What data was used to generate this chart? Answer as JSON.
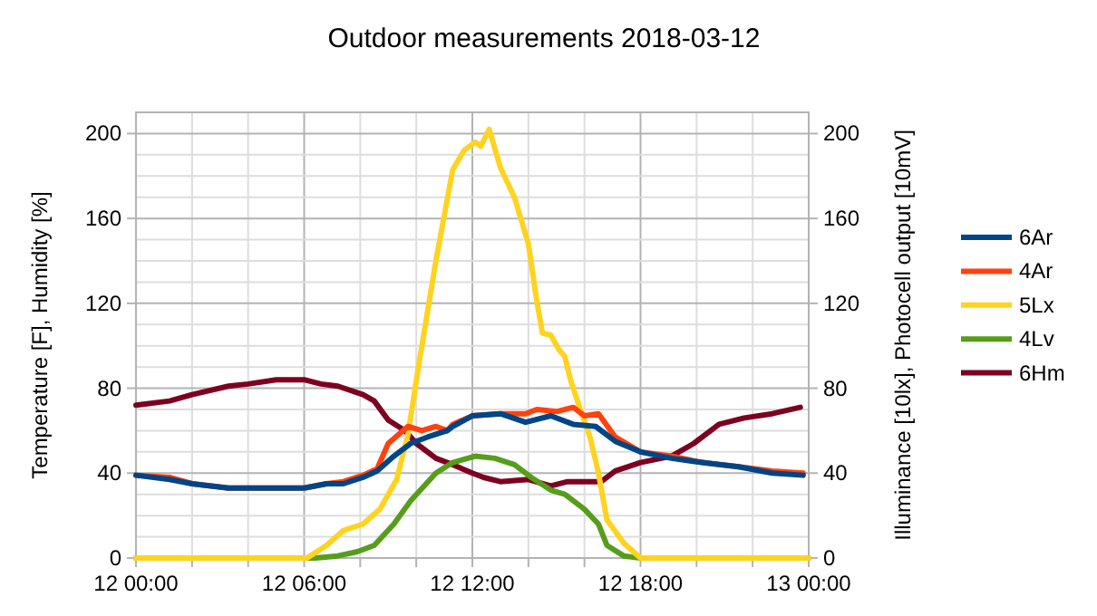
{
  "chart_data": {
    "type": "line",
    "title": "Outdoor measurements 2018-03-12",
    "ylabel": "Temperature [F], Humidity [%]",
    "y2label": "Illuminance [10lx], Photocell output [10mV]",
    "xlim": [
      "2018-03-12T00:00",
      "2018-03-13T00:00"
    ],
    "xticks": [
      {
        "value": "2018-03-12T00:00",
        "label": "12 00:00"
      },
      {
        "value": "2018-03-12T02:00",
        "label": null
      },
      {
        "value": "2018-03-12T04:00",
        "label": null
      },
      {
        "value": "2018-03-12T06:00",
        "label": "12 06:00"
      },
      {
        "value": "2018-03-12T08:00",
        "label": null
      },
      {
        "value": "2018-03-12T10:00",
        "label": null
      },
      {
        "value": "2018-03-12T12:00",
        "label": "12 12:00"
      },
      {
        "value": "2018-03-12T14:00",
        "label": null
      },
      {
        "value": "2018-03-12T16:00",
        "label": null
      },
      {
        "value": "2018-03-12T18:00",
        "label": "12 18:00"
      },
      {
        "value": "2018-03-12T20:00",
        "label": null
      },
      {
        "value": "2018-03-12T22:00",
        "label": null
      },
      {
        "value": "2018-03-13T00:00",
        "label": "13 00:00"
      }
    ],
    "ylim": [
      0,
      210
    ],
    "yticks": [
      0,
      {
        "value": 10,
        "label": null
      },
      {
        "value": 20,
        "label": null
      },
      {
        "value": 30,
        "label": null
      },
      40,
      {
        "value": 50,
        "label": null
      },
      {
        "value": 60,
        "label": null
      },
      {
        "value": 70,
        "label": null
      },
      80,
      {
        "value": 90,
        "label": null
      },
      {
        "value": 100,
        "label": null
      },
      {
        "value": 110,
        "label": null
      },
      120,
      {
        "value": 130,
        "label": null
      },
      {
        "value": 140,
        "label": null
      },
      {
        "value": 150,
        "label": null
      },
      160,
      {
        "value": 170,
        "label": null
      },
      {
        "value": 180,
        "label": null
      },
      {
        "value": 190,
        "label": null
      },
      200
    ],
    "y2lim": [
      0,
      210
    ],
    "y2ticks": [
      0,
      40,
      80,
      120,
      160,
      200
    ],
    "grid": true,
    "legend": "right",
    "line_style": "solid",
    "series": [
      {
        "name": "6Ar",
        "color": "#004586",
        "x": [
          "2018-03-12T00:00",
          "2018-03-12T01:12",
          "2018-03-12T02:00",
          "2018-03-12T03:18",
          "2018-03-12T05:00",
          "2018-03-12T06:00",
          "2018-03-12T06:48",
          "2018-03-12T07:24",
          "2018-03-12T08:06",
          "2018-03-12T08:36",
          "2018-03-12T09:12",
          "2018-03-12T09:48",
          "2018-03-12T10:24",
          "2018-03-12T11:06",
          "2018-03-12T11:18",
          "2018-03-12T12:00",
          "2018-03-12T13:00",
          "2018-03-12T13:54",
          "2018-03-12T14:48",
          "2018-03-12T15:36",
          "2018-03-12T16:24",
          "2018-03-12T17:06",
          "2018-03-12T18:00",
          "2018-03-12T19:06",
          "2018-03-12T20:12",
          "2018-03-12T21:30",
          "2018-03-12T22:42",
          "2018-03-12T23:48"
        ],
        "values": [
          39,
          37,
          35,
          33,
          33,
          33,
          35,
          35,
          38,
          41,
          48,
          54,
          57,
          60,
          62,
          67,
          68,
          64,
          67,
          63,
          62,
          55,
          50,
          47,
          45,
          43,
          40,
          39
        ]
      },
      {
        "name": "4Ar",
        "color": "#ff420e",
        "x": [
          "2018-03-12T00:00",
          "2018-03-12T01:12",
          "2018-03-12T02:00",
          "2018-03-12T03:18",
          "2018-03-12T05:00",
          "2018-03-12T06:00",
          "2018-03-12T06:48",
          "2018-03-12T07:24",
          "2018-03-12T08:06",
          "2018-03-12T08:36",
          "2018-03-12T09:00",
          "2018-03-12T09:42",
          "2018-03-12T10:12",
          "2018-03-12T10:42",
          "2018-03-12T11:06",
          "2018-03-12T11:18",
          "2018-03-12T12:00",
          "2018-03-12T13:00",
          "2018-03-12T13:54",
          "2018-03-12T14:18",
          "2018-03-12T15:00",
          "2018-03-12T15:36",
          "2018-03-12T16:00",
          "2018-03-12T16:30",
          "2018-03-12T17:06",
          "2018-03-12T18:00",
          "2018-03-12T19:06",
          "2018-03-12T20:12",
          "2018-03-12T21:30",
          "2018-03-12T22:42",
          "2018-03-12T23:48"
        ],
        "values": [
          39,
          38,
          35,
          33,
          33,
          33,
          35,
          36,
          39,
          42,
          54,
          62,
          60,
          62,
          60,
          63,
          67,
          68,
          68,
          70,
          69,
          71,
          67,
          68,
          57,
          50,
          48,
          45,
          43,
          41,
          40
        ]
      },
      {
        "name": "5Lx",
        "color": "#ffd320",
        "x": [
          "2018-03-12T00:00",
          "2018-03-12T06:06",
          "2018-03-12T06:48",
          "2018-03-12T07:24",
          "2018-03-12T08:06",
          "2018-03-12T08:42",
          "2018-03-12T09:18",
          "2018-03-12T09:42",
          "2018-03-12T10:06",
          "2018-03-12T10:42",
          "2018-03-12T11:18",
          "2018-03-12T11:42",
          "2018-03-12T12:06",
          "2018-03-12T12:18",
          "2018-03-12T12:36",
          "2018-03-12T13:00",
          "2018-03-12T13:30",
          "2018-03-12T14:00",
          "2018-03-12T14:18",
          "2018-03-12T14:30",
          "2018-03-12T14:48",
          "2018-03-12T15:06",
          "2018-03-12T15:18",
          "2018-03-12T15:30",
          "2018-03-12T15:48",
          "2018-03-12T16:12",
          "2018-03-12T16:30",
          "2018-03-12T16:48",
          "2018-03-12T17:24",
          "2018-03-12T18:00",
          "2018-03-13T00:00"
        ],
        "values": [
          0,
          0,
          6,
          13,
          16,
          23,
          37,
          58,
          92,
          140,
          183,
          192,
          196,
          194,
          202,
          184,
          170,
          148,
          121,
          106,
          105,
          98,
          95,
          84,
          72,
          57,
          40,
          18,
          7,
          0,
          0
        ]
      },
      {
        "name": "4Lv",
        "color": "#579d1c",
        "x": [
          "2018-03-12T00:00",
          "2018-03-12T06:24",
          "2018-03-12T07:12",
          "2018-03-12T07:54",
          "2018-03-12T08:30",
          "2018-03-12T09:12",
          "2018-03-12T09:48",
          "2018-03-12T10:42",
          "2018-03-12T11:18",
          "2018-03-12T12:06",
          "2018-03-12T12:48",
          "2018-03-12T13:30",
          "2018-03-12T14:06",
          "2018-03-12T14:48",
          "2018-03-12T15:18",
          "2018-03-12T16:00",
          "2018-03-12T16:30",
          "2018-03-12T16:48",
          "2018-03-12T17:24",
          "2018-03-12T18:00",
          "2018-03-13T00:00"
        ],
        "values": [
          0,
          0,
          1,
          3,
          6,
          16,
          27,
          40,
          45,
          48,
          47,
          44,
          38,
          32,
          30,
          23,
          16,
          6,
          1,
          0,
          0
        ]
      },
      {
        "name": "6Hm",
        "color": "#7e0021",
        "x": [
          "2018-03-12T00:00",
          "2018-03-12T01:12",
          "2018-03-12T02:00",
          "2018-03-12T03:18",
          "2018-03-12T04:00",
          "2018-03-12T05:00",
          "2018-03-12T06:00",
          "2018-03-12T06:36",
          "2018-03-12T07:12",
          "2018-03-12T08:06",
          "2018-03-12T08:30",
          "2018-03-12T09:00",
          "2018-03-12T09:36",
          "2018-03-12T10:00",
          "2018-03-12T10:42",
          "2018-03-12T11:18",
          "2018-03-12T12:00",
          "2018-03-12T12:24",
          "2018-03-12T13:00",
          "2018-03-12T14:00",
          "2018-03-12T14:48",
          "2018-03-12T15:24",
          "2018-03-12T16:36",
          "2018-03-12T17:06",
          "2018-03-12T18:00",
          "2018-03-12T19:06",
          "2018-03-12T19:54",
          "2018-03-12T20:48",
          "2018-03-12T21:42",
          "2018-03-12T22:42",
          "2018-03-12T23:42"
        ],
        "values": [
          72,
          74,
          77,
          81,
          82,
          84,
          84,
          82,
          81,
          77,
          74,
          65,
          60,
          54,
          47,
          44,
          40,
          38,
          36,
          37,
          34,
          36,
          36,
          41,
          45,
          48,
          54,
          63,
          66,
          68,
          71
        ]
      }
    ]
  }
}
